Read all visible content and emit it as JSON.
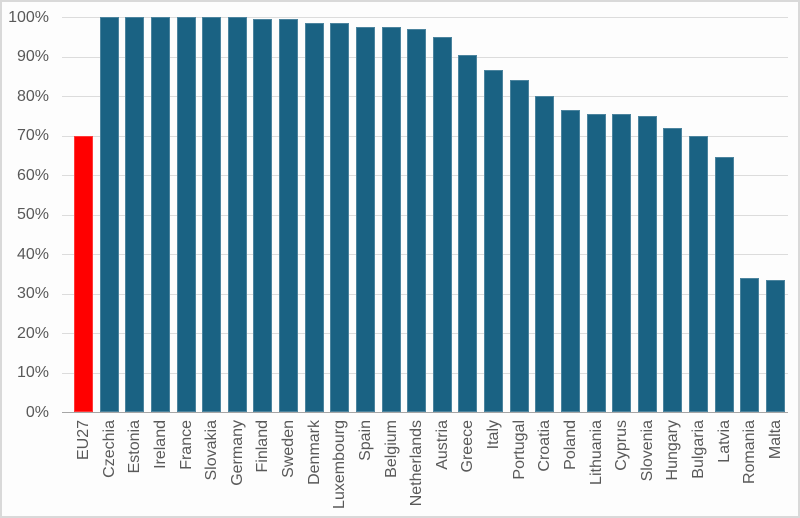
{
  "chart_data": {
    "type": "bar",
    "title": "",
    "xlabel": "",
    "ylabel": "",
    "categories": [
      "EU27",
      "Czechia",
      "Estonia",
      "Ireland",
      "France",
      "Slovakia",
      "Germany",
      "Finland",
      "Sweden",
      "Denmark",
      "Luxembourg",
      "Spain",
      "Belgium",
      "Netherlands",
      "Austria",
      "Greece",
      "Italy",
      "Portugal",
      "Croatia",
      "Poland",
      "Lithuania",
      "Cyprus",
      "Slovenia",
      "Hungary",
      "Bulgaria",
      "Latvia",
      "Romania",
      "Malta"
    ],
    "values": [
      70,
      100,
      100,
      100,
      100,
      100,
      100,
      99.5,
      99.5,
      98.5,
      98.5,
      97.5,
      97.5,
      97,
      95,
      90.5,
      86.5,
      84,
      80,
      76.5,
      75.5,
      75.5,
      75,
      72,
      70,
      64.5,
      34,
      33.5
    ],
    "unit": "%",
    "highlight_category": "EU27",
    "ylim": [
      0,
      100
    ],
    "ytick_step": 10,
    "ytick_labels": [
      "0%",
      "10%",
      "20%",
      "30%",
      "40%",
      "50%",
      "60%",
      "70%",
      "80%",
      "90%",
      "100%"
    ],
    "grid": "horizontal",
    "legend_position": "none",
    "xlabel_rotation_degrees": -90,
    "colors": {
      "bar_default": "#1A6283",
      "bar_highlight": "#FF0000",
      "gridline": "#DCDCDC",
      "axis_line": "#A6A6A6",
      "tick_label_text": "#595959",
      "background": "#FDFDFD",
      "chart_border": "#D9D9D9"
    }
  }
}
